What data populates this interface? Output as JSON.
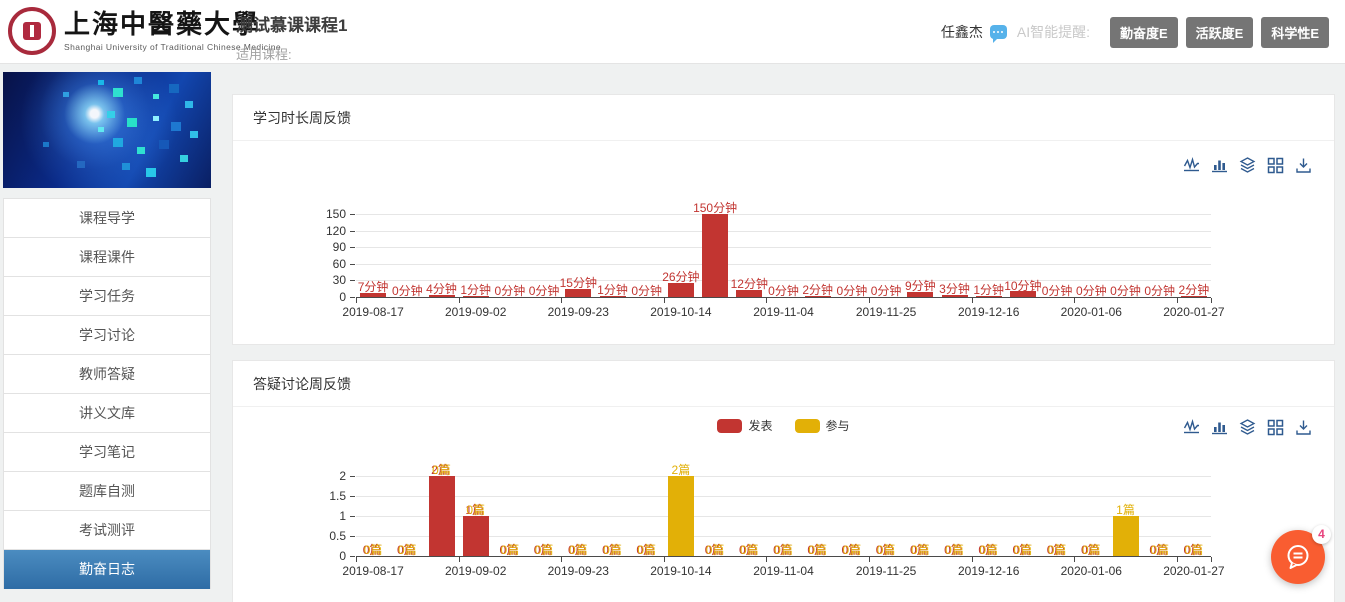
{
  "header": {
    "university_name": "上海中醫藥大學",
    "university_name_en": "Shanghai University of Traditional Chinese Medicine",
    "course_title": "测试慕课课程1",
    "course_subtitle": "适用课程:",
    "user_name": "任鑫杰",
    "ai_label": "AI智能提醒:",
    "badges": [
      {
        "label": "勤奋度E"
      },
      {
        "label": "活跃度E"
      },
      {
        "label": "科学性E"
      }
    ]
  },
  "sidebar": {
    "items": [
      {
        "label": "课程导学",
        "active": false
      },
      {
        "label": "课程课件",
        "active": false
      },
      {
        "label": "学习任务",
        "active": false
      },
      {
        "label": "学习讨论",
        "active": false
      },
      {
        "label": "教师答疑",
        "active": false
      },
      {
        "label": "讲义文库",
        "active": false
      },
      {
        "label": "学习笔记",
        "active": false
      },
      {
        "label": "题库自测",
        "active": false
      },
      {
        "label": "考试测评",
        "active": false
      },
      {
        "label": "勤奋日志",
        "active": true
      }
    ]
  },
  "toolbox": {
    "icons": [
      "line-chart",
      "bar-chart",
      "stack",
      "tiled",
      "download"
    ]
  },
  "colors": {
    "accent_red": "#c23531",
    "accent_gold": "#e2b007",
    "sidebar_active": "#3779b0",
    "fab_orange": "#f95d31",
    "toolbox_icon": "#2f5a8f"
  },
  "chart_data": [
    {
      "type": "bar",
      "title": "学习时长周反馈",
      "num_categories": 25,
      "x_tick_indices": [
        0,
        3,
        6,
        9,
        12,
        15,
        18,
        21,
        24
      ],
      "x_tick_labels": [
        "2019-08-17",
        "2019-09-02",
        "2019-09-23",
        "2019-10-14",
        "2019-11-04",
        "2019-11-25",
        "2019-12-16",
        "2020-01-06",
        "2020-01-27"
      ],
      "values": [
        7,
        0,
        4,
        1,
        0,
        0,
        15,
        1,
        0,
        26,
        150,
        12,
        0,
        2,
        0,
        0,
        9,
        3,
        1,
        10,
        0,
        0,
        0,
        0,
        2
      ],
      "unit_suffix": "分钟",
      "color": "#c23531",
      "ylim": [
        0,
        150
      ],
      "y_ticks": [
        0,
        30,
        60,
        90,
        120,
        150
      ],
      "grid": true,
      "legend": null
    },
    {
      "type": "bar",
      "title": "答疑讨论周反馈",
      "stacked": true,
      "num_categories": 25,
      "x_tick_indices": [
        0,
        3,
        6,
        9,
        12,
        15,
        18,
        21,
        24
      ],
      "x_tick_labels": [
        "2019-08-17",
        "2019-09-02",
        "2019-09-23",
        "2019-10-14",
        "2019-11-04",
        "2019-11-25",
        "2019-12-16",
        "2020-01-06",
        "2020-01-27"
      ],
      "series": [
        {
          "name": "发表",
          "color": "#c23531",
          "values": [
            0,
            0,
            2,
            1,
            0,
            0,
            0,
            0,
            0,
            0,
            0,
            0,
            0,
            0,
            0,
            0,
            0,
            0,
            0,
            0,
            0,
            0,
            0,
            0,
            0
          ]
        },
        {
          "name": "参与",
          "color": "#e2b007",
          "values": [
            0,
            0,
            0,
            0,
            0,
            0,
            0,
            0,
            0,
            2,
            0,
            0,
            0,
            0,
            0,
            0,
            0,
            0,
            0,
            0,
            0,
            0,
            1,
            0,
            0
          ]
        }
      ],
      "unit_suffix": "篇",
      "ylim": [
        0,
        2
      ],
      "y_ticks": [
        0,
        0.5,
        1,
        1.5,
        2
      ],
      "grid": true,
      "legend_position": "top-center"
    }
  ],
  "floating_chat": {
    "badge_count": "4"
  }
}
